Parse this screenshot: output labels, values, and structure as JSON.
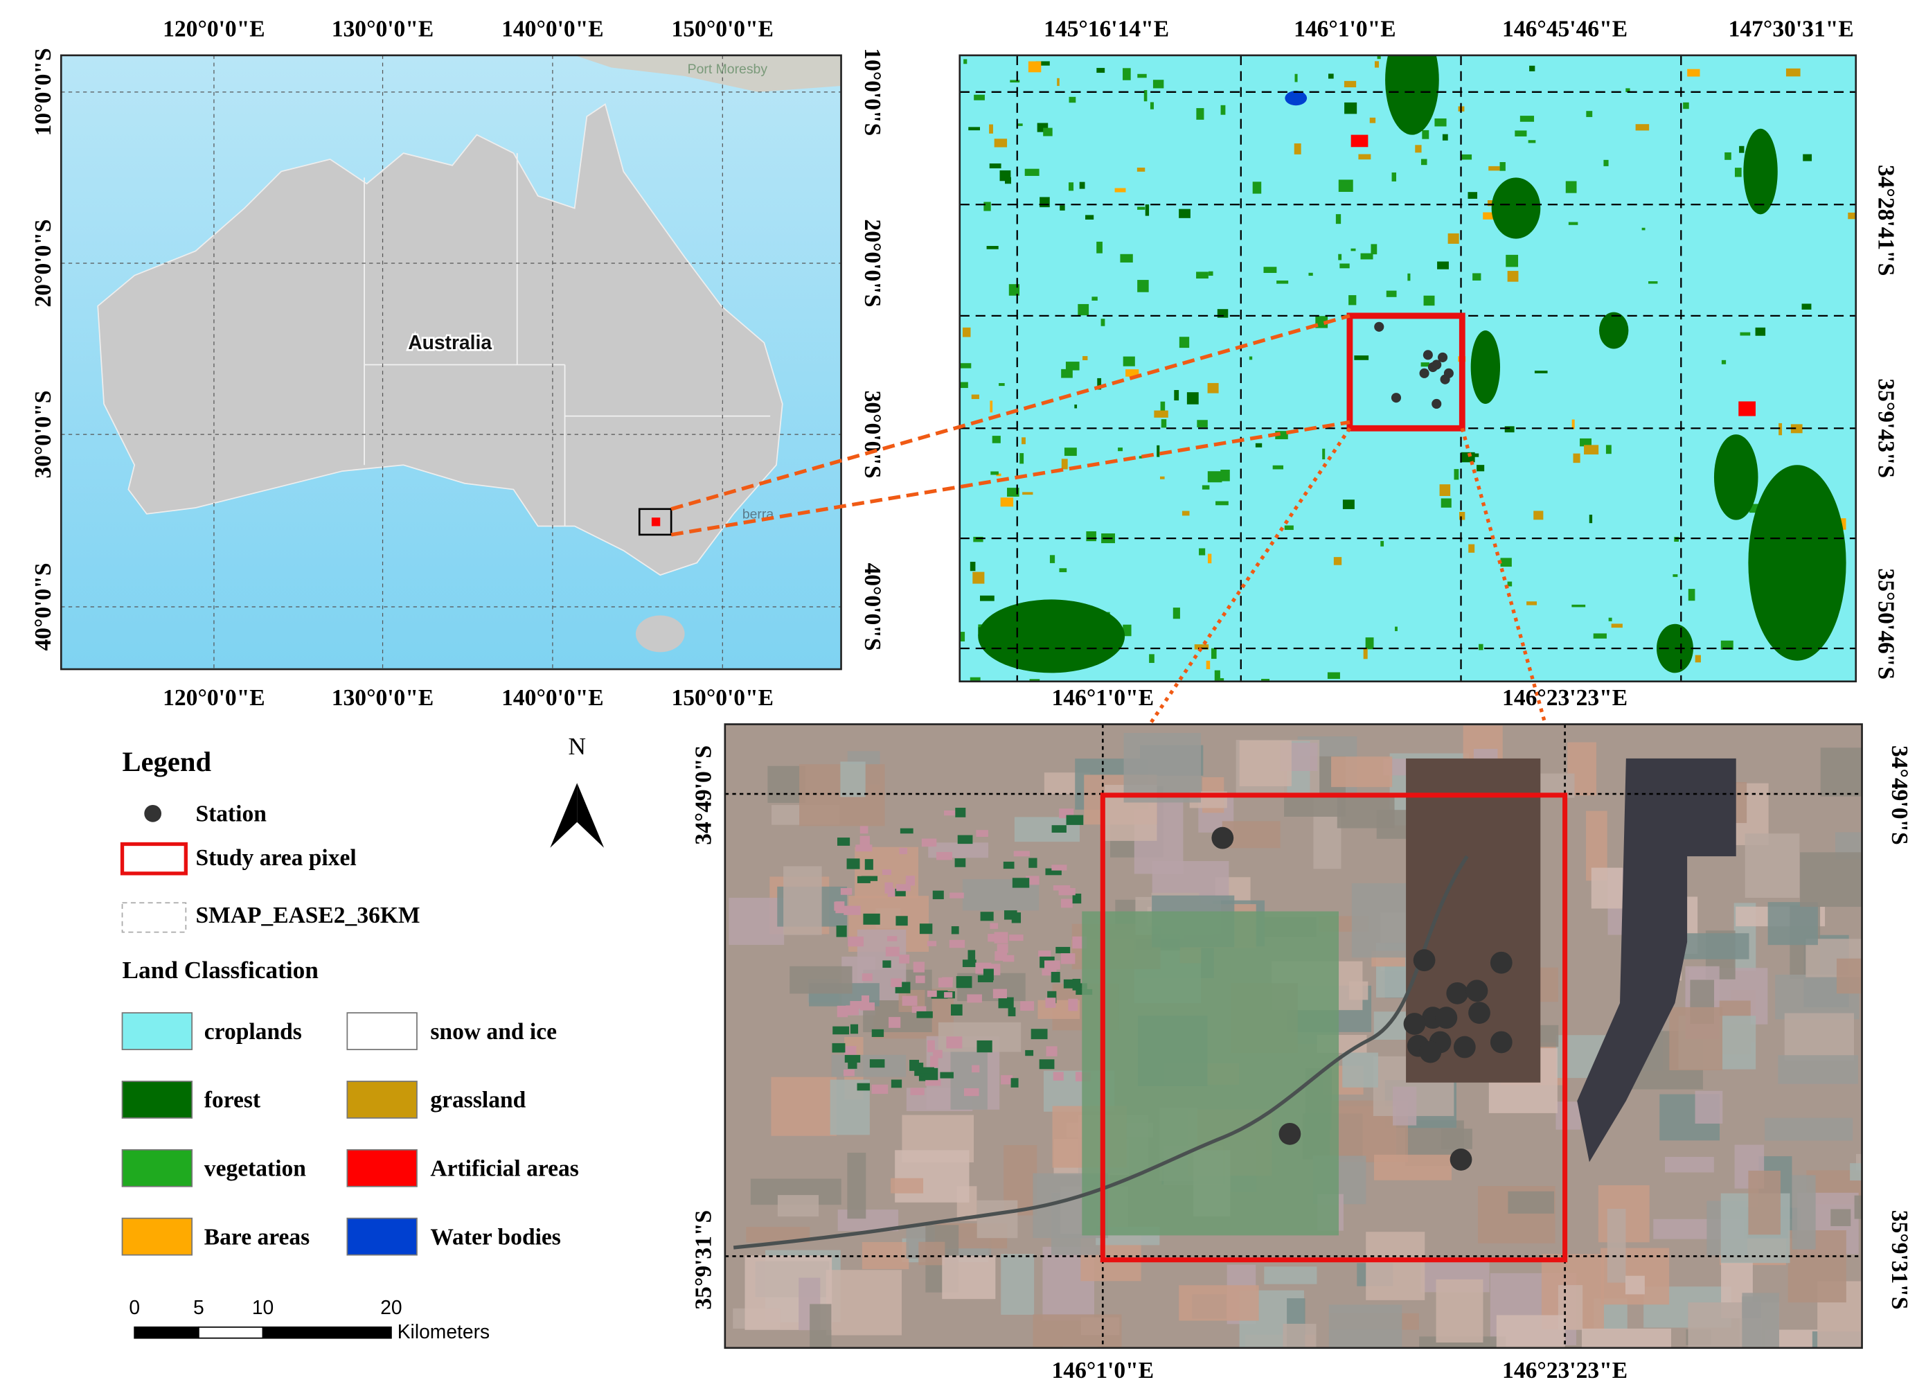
{
  "map1": {
    "top_labels": [
      "120°0'0\"E",
      "130°0'0\"E",
      "140°0'0\"E",
      "150°0'0\"E"
    ],
    "bottom_labels": [
      "120°0'0\"E",
      "130°0'0\"E",
      "140°0'0\"E",
      "150°0'0\"E"
    ],
    "left_labels": [
      "10°0'0\"S",
      "20°0'0\"S",
      "30°0'0\"S",
      "40°0'0\"S"
    ],
    "right_labels": [
      "10°0'0\"S",
      "20°0'0\"S",
      "30°0'0\"S",
      "40°0'0\"S"
    ],
    "place_labels": [
      "Australia",
      "Port Moresby",
      "berra"
    ]
  },
  "map2": {
    "top_labels": [
      "145°16'14\"E",
      "146°1'0\"E",
      "146°45'46\"E",
      "147°30'31\"E"
    ],
    "right_labels": [
      "34°28'41\"S",
      "35°9'43\"S",
      "35°50'46\"S"
    ]
  },
  "map3": {
    "top_labels": [
      "146°1'0\"E",
      "146°23'23\"E"
    ],
    "bottom_labels": [
      "146°1'0\"E",
      "146°23'23\"E"
    ],
    "left_labels": [
      "34°49'0\"S",
      "35°9'31\"S"
    ],
    "right_labels": [
      "34°49'0\"S",
      "35°9'31\"S"
    ]
  },
  "legend": {
    "title": "Legend",
    "items": [
      "Station",
      "Study area pixel",
      "SMAP_EASE2_36KM"
    ],
    "land_title": "Land Classfication",
    "classes": [
      {
        "label": "croplands",
        "color": "#80eef0"
      },
      {
        "label": "snow and ice",
        "color": "#ffffff"
      },
      {
        "label": "forest",
        "color": "#006b00"
      },
      {
        "label": "grassland",
        "color": "#c9990a"
      },
      {
        "label": "vegetation",
        "color": "#1faa1f"
      },
      {
        "label": "Artificial areas",
        "color": "#ff0000"
      },
      {
        "label": "Bare areas",
        "color": "#ffaa00"
      },
      {
        "label": "Water bodies",
        "color": "#0040d0"
      }
    ]
  },
  "north": "N",
  "scale_bar": {
    "ticks": [
      0,
      5,
      10,
      20
    ],
    "unit": "Kilometers"
  }
}
